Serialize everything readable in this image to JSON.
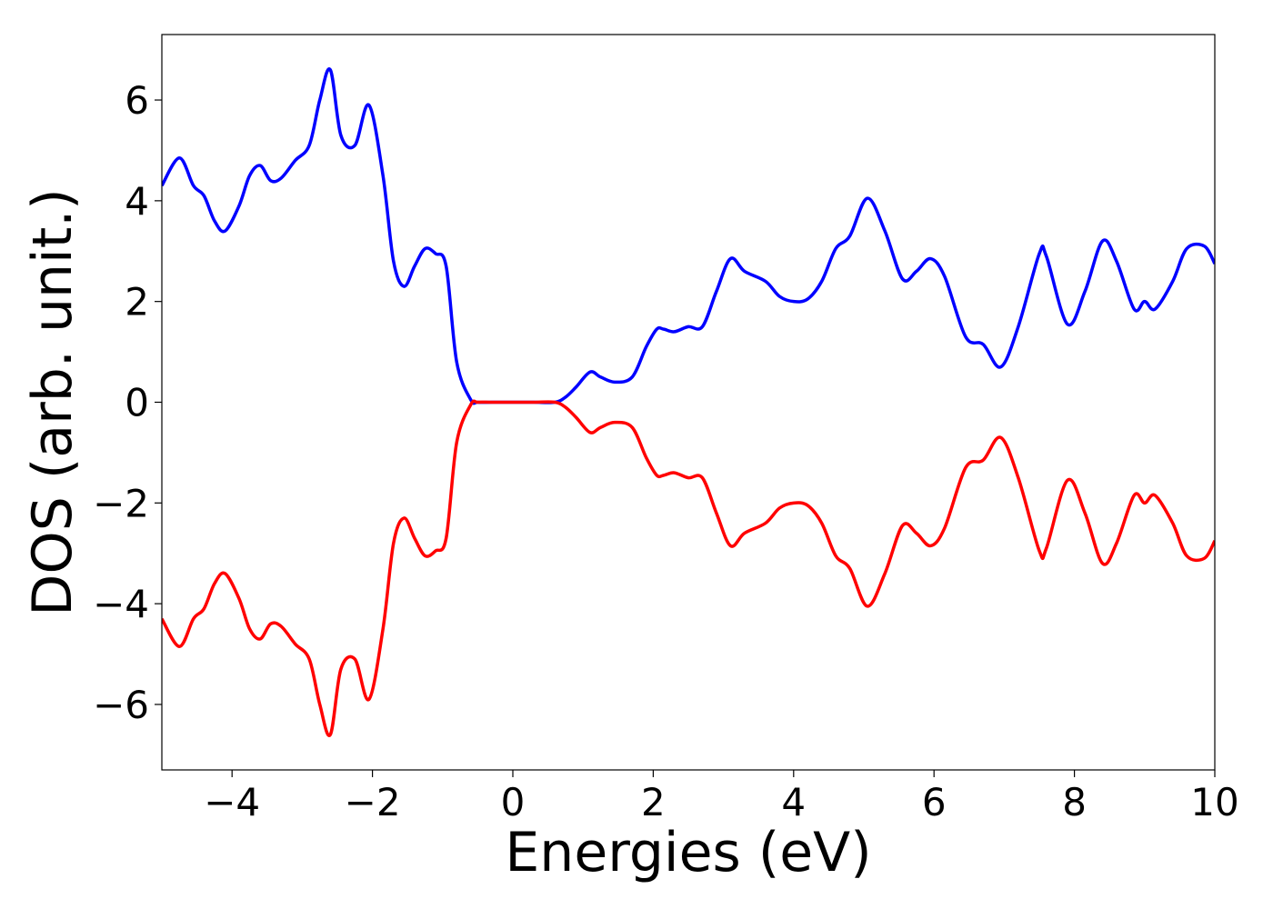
{
  "chart_data": {
    "type": "line",
    "title": "",
    "xlabel": "Energies (eV)",
    "ylabel": "DOS (arb. unit.)",
    "xlim": [
      -5,
      10
    ],
    "ylim": [
      -7.3,
      7.3
    ],
    "xticks": [
      -4,
      -2,
      0,
      2,
      4,
      6,
      8,
      10
    ],
    "xtick_labels": [
      "−4",
      "−2",
      "0",
      "2",
      "4",
      "6",
      "8",
      "10"
    ],
    "yticks": [
      -6,
      -4,
      -2,
      0,
      2,
      4,
      6
    ],
    "ytick_labels": [
      "−6",
      "−4",
      "−2",
      "0",
      "2",
      "4",
      "6"
    ],
    "grid": false,
    "legend": "none",
    "series": [
      {
        "color": "#0000ff",
        "x": [
          -5.0,
          -4.75,
          -4.55,
          -4.4,
          -4.25,
          -4.1,
          -3.9,
          -3.75,
          -3.6,
          -3.45,
          -3.3,
          -3.1,
          -2.9,
          -2.75,
          -2.6,
          -2.45,
          -2.25,
          -2.05,
          -1.85,
          -1.7,
          -1.55,
          -1.4,
          -1.25,
          -1.1,
          -0.95,
          -0.8,
          -0.6,
          -0.5,
          -0.3,
          0.0,
          0.3,
          0.6,
          0.75,
          0.9,
          1.1,
          1.25,
          1.45,
          1.7,
          1.9,
          2.05,
          2.15,
          2.3,
          2.5,
          2.7,
          2.9,
          3.1,
          3.3,
          3.6,
          3.8,
          4.0,
          4.2,
          4.4,
          4.6,
          4.8,
          5.05,
          5.3,
          5.55,
          5.75,
          5.95,
          6.15,
          6.45,
          6.7,
          6.95,
          7.2,
          7.5,
          7.6,
          7.9,
          8.15,
          8.4,
          8.6,
          8.85,
          9.0,
          9.15,
          9.4,
          9.6,
          9.85,
          10.0
        ],
        "y": [
          4.3,
          4.85,
          4.3,
          4.1,
          3.6,
          3.4,
          3.9,
          4.5,
          4.7,
          4.4,
          4.45,
          4.8,
          5.1,
          6.0,
          6.6,
          5.3,
          5.1,
          5.9,
          4.5,
          2.8,
          2.3,
          2.7,
          3.05,
          2.95,
          2.7,
          0.8,
          0.05,
          0.0,
          0.0,
          0.0,
          0.0,
          0.0,
          0.1,
          0.3,
          0.6,
          0.5,
          0.4,
          0.5,
          1.1,
          1.45,
          1.45,
          1.4,
          1.5,
          1.5,
          2.2,
          2.85,
          2.6,
          2.4,
          2.1,
          2.0,
          2.05,
          2.4,
          3.05,
          3.3,
          4.05,
          3.4,
          2.45,
          2.6,
          2.85,
          2.5,
          1.3,
          1.15,
          0.7,
          1.5,
          2.95,
          2.9,
          1.55,
          2.2,
          3.2,
          2.8,
          1.85,
          2.0,
          1.85,
          2.4,
          3.05,
          3.1,
          2.75
        ]
      },
      {
        "color": "#ff0000",
        "x": [
          -5.0,
          -4.75,
          -4.55,
          -4.4,
          -4.25,
          -4.1,
          -3.9,
          -3.75,
          -3.6,
          -3.45,
          -3.3,
          -3.1,
          -2.9,
          -2.75,
          -2.6,
          -2.45,
          -2.25,
          -2.05,
          -1.85,
          -1.7,
          -1.55,
          -1.4,
          -1.25,
          -1.1,
          -0.95,
          -0.8,
          -0.6,
          -0.5,
          -0.3,
          0.0,
          0.3,
          0.6,
          0.75,
          0.9,
          1.1,
          1.25,
          1.45,
          1.7,
          1.9,
          2.05,
          2.15,
          2.3,
          2.5,
          2.7,
          2.9,
          3.1,
          3.3,
          3.6,
          3.8,
          4.0,
          4.2,
          4.4,
          4.6,
          4.8,
          5.05,
          5.3,
          5.55,
          5.75,
          5.95,
          6.15,
          6.45,
          6.7,
          6.95,
          7.2,
          7.5,
          7.6,
          7.9,
          8.15,
          8.4,
          8.6,
          8.85,
          9.0,
          9.15,
          9.4,
          9.6,
          9.85,
          10.0
        ],
        "y": [
          -4.3,
          -4.85,
          -4.3,
          -4.1,
          -3.6,
          -3.4,
          -3.9,
          -4.5,
          -4.7,
          -4.4,
          -4.45,
          -4.8,
          -5.1,
          -6.0,
          -6.6,
          -5.3,
          -5.1,
          -5.9,
          -4.5,
          -2.8,
          -2.3,
          -2.7,
          -3.05,
          -2.95,
          -2.7,
          -0.8,
          -0.05,
          0.0,
          0.0,
          0.0,
          0.0,
          0.0,
          -0.1,
          -0.3,
          -0.6,
          -0.5,
          -0.4,
          -0.5,
          -1.1,
          -1.45,
          -1.45,
          -1.4,
          -1.5,
          -1.5,
          -2.2,
          -2.85,
          -2.6,
          -2.4,
          -2.1,
          -2.0,
          -2.05,
          -2.4,
          -3.05,
          -3.3,
          -4.05,
          -3.4,
          -2.45,
          -2.6,
          -2.85,
          -2.5,
          -1.3,
          -1.15,
          -0.7,
          -1.5,
          -2.95,
          -2.9,
          -1.55,
          -2.2,
          -3.2,
          -2.8,
          -1.85,
          -2.0,
          -1.85,
          -2.4,
          -3.05,
          -3.1,
          -2.75
        ]
      }
    ]
  }
}
